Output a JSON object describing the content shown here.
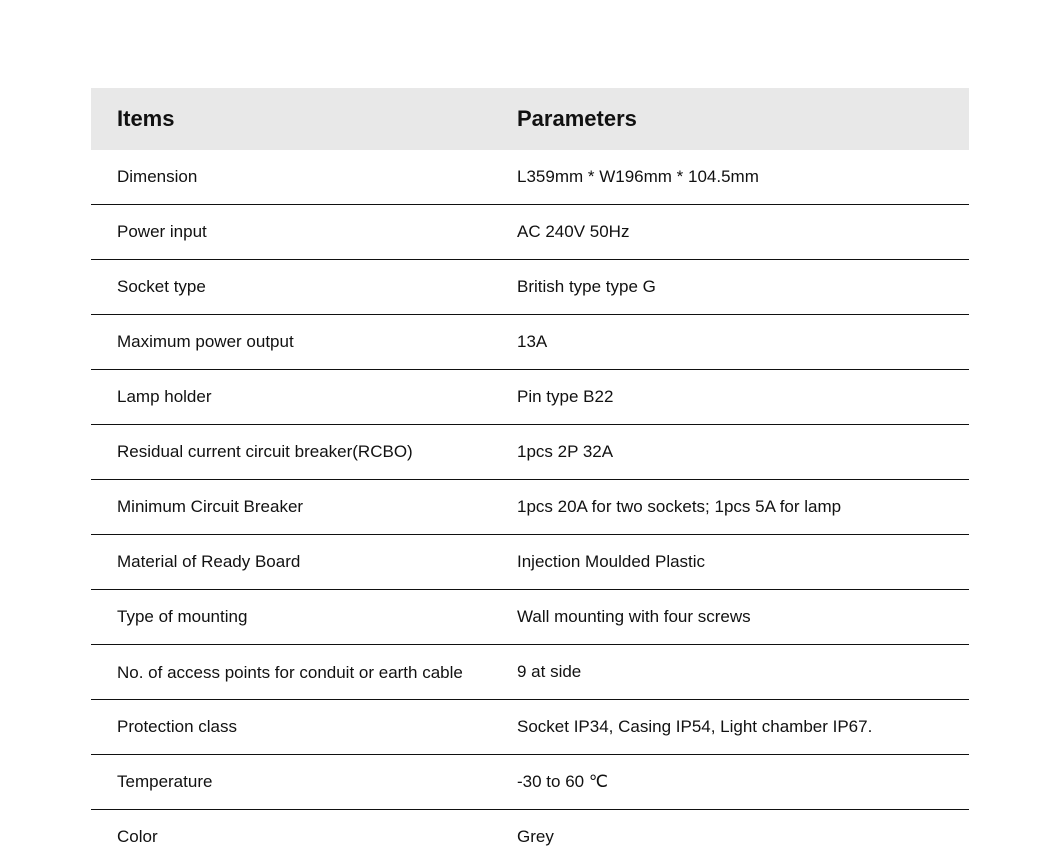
{
  "table": {
    "type": "table",
    "background_color": "#ffffff",
    "header_bg_color": "#e8e8e8",
    "border_color": "#111111",
    "text_color": "#111111",
    "header_fontsize": 22,
    "body_fontsize": 17,
    "columns": [
      "Items",
      "Parameters"
    ],
    "rows": [
      {
        "item": "Dimension",
        "param": "L359mm * W196mm * 104.5mm"
      },
      {
        "item": "Power input",
        "param": "AC 240V 50Hz"
      },
      {
        "item": "Socket type",
        "param": "British type type G"
      },
      {
        "item": "Maximum power output",
        "param": "13A"
      },
      {
        "item": "Lamp holder",
        "param": "Pin type B22"
      },
      {
        "item": "Residual current circuit breaker(RCBO)",
        "param": "1pcs 2P 32A"
      },
      {
        "item": "Minimum Circuit Breaker",
        "param": "1pcs 20A for two sockets; 1pcs 5A for lamp"
      },
      {
        "item": "Material of Ready Board",
        "param": "Injection Moulded Plastic"
      },
      {
        "item": "Type of mounting",
        "param": "Wall mounting with four screws"
      },
      {
        "item": "No. of access points for conduit or earth cable",
        "param": "9 at side",
        "twoLine": true
      },
      {
        "item": "Protection class",
        "param": "Socket IP34, Casing IP54, Light chamber IP67."
      },
      {
        "item": "Temperature",
        "param": "-30 to 60 ℃"
      },
      {
        "item": "Color",
        "param": "Grey"
      }
    ]
  }
}
